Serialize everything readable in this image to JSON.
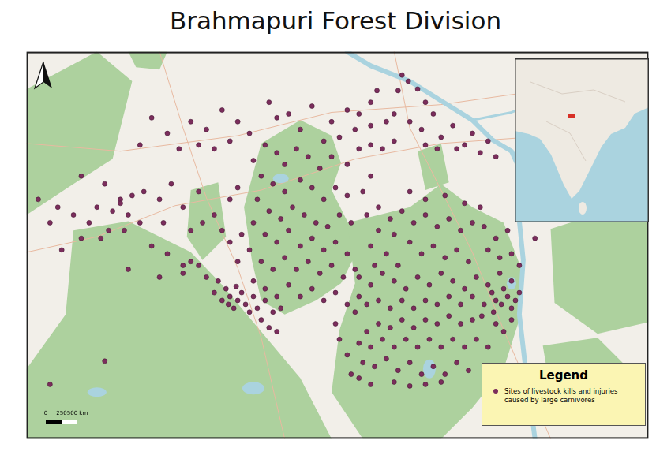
{
  "chart_data": {
    "type": "scatter",
    "title": "Brahmapuri Forest Division",
    "xlim": [
      30,
      825
    ],
    "ylim": [
      22,
      520
    ],
    "tick_labels": false,
    "grid": false,
    "legend": "bottom right",
    "legend_title": "Legend",
    "scale_bar": [
      {
        "value": 0,
        "label": "0"
      },
      {
        "value": 250,
        "label": "250"
      },
      {
        "value": 500,
        "label": "500 km"
      }
    ],
    "series": [
      {
        "name": "Sites of livestock kills and injuries caused by large carnivores",
        "color": "#7b2d5c",
        "marker": "circle",
        "points": [
          [
            510,
            490
          ],
          [
            518,
            482
          ],
          [
            505,
            470
          ],
          [
            530,
            472
          ],
          [
            540,
            455
          ],
          [
            478,
            470
          ],
          [
            470,
            455
          ],
          [
            455,
            440
          ],
          [
            440,
            445
          ],
          [
            420,
            430
          ],
          [
            395,
            450
          ],
          [
            380,
            420
          ],
          [
            410,
            405
          ],
          [
            430,
            410
          ],
          [
            450,
            420
          ],
          [
            470,
            425
          ],
          [
            490,
            430
          ],
          [
            500,
            440
          ],
          [
            520,
            430
          ],
          [
            535,
            420
          ],
          [
            550,
            440
          ],
          [
            560,
            410
          ],
          [
            575,
            425
          ],
          [
            590,
            400
          ],
          [
            600,
            415
          ],
          [
            620,
            405
          ],
          [
            630,
            385
          ],
          [
            610,
            390
          ],
          [
            580,
            395
          ],
          [
            555,
            395
          ],
          [
            540,
            400
          ],
          [
            500,
            405
          ],
          [
            485,
            395
          ],
          [
            470,
            400
          ],
          [
            455,
            395
          ],
          [
            340,
            455
          ],
          [
            350,
            435
          ],
          [
            365,
            440
          ],
          [
            300,
            430
          ],
          [
            280,
            445
          ],
          [
            260,
            420
          ],
          [
            240,
            430
          ],
          [
            210,
            415
          ],
          [
            190,
            435
          ],
          [
            175,
            400
          ],
          [
            225,
            395
          ],
          [
            250,
            400
          ],
          [
            270,
            395
          ],
          [
            290,
            405
          ],
          [
            315,
            415
          ],
          [
            100,
            360
          ],
          [
            130,
            350
          ],
          [
            150,
            330
          ],
          [
            120,
            320
          ],
          [
            140,
            315
          ],
          [
            160,
            310
          ],
          [
            110,
            300
          ],
          [
            90,
            310
          ],
          [
            70,
            320
          ],
          [
            45,
            330
          ],
          [
            60,
            300
          ],
          [
            180,
            340
          ],
          [
            200,
            330
          ],
          [
            215,
            350
          ],
          [
            230,
            320
          ],
          [
            250,
            340
          ],
          [
            205,
            300
          ],
          [
            175,
            300
          ],
          [
            155,
            290
          ],
          [
            135,
            290
          ],
          [
            125,
            280
          ],
          [
            150,
            325
          ],
          [
            165,
            335
          ],
          [
            255,
            300
          ],
          [
            240,
            290
          ],
          [
            270,
            310
          ],
          [
            290,
            330
          ],
          [
            300,
            345
          ],
          [
            280,
            290
          ],
          [
            190,
            270
          ],
          [
            210,
            260
          ],
          [
            230,
            245
          ],
          [
            200,
            230
          ],
          [
            160,
            240
          ],
          [
            100,
            280
          ],
          [
            75,
            265
          ],
          [
            320,
            380
          ],
          [
            335,
            400
          ],
          [
            350,
            390
          ],
          [
            360,
            375
          ],
          [
            375,
            395
          ],
          [
            390,
            385
          ],
          [
            405,
            370
          ],
          [
            420,
            385
          ],
          [
            440,
            375
          ],
          [
            330,
            360
          ],
          [
            345,
            350
          ],
          [
            360,
            340
          ],
          [
            380,
            355
          ],
          [
            395,
            345
          ],
          [
            410,
            330
          ],
          [
            425,
            345
          ],
          [
            440,
            335
          ],
          [
            325,
            330
          ],
          [
            340,
            315
          ],
          [
            355,
            305
          ],
          [
            370,
            320
          ],
          [
            385,
            310
          ],
          [
            400,
            300
          ],
          [
            415,
            295
          ],
          [
            430,
            310
          ],
          [
            445,
            300
          ],
          [
            320,
            300
          ],
          [
            335,
            285
          ],
          [
            350,
            275
          ],
          [
            365,
            290
          ],
          [
            380,
            270
          ],
          [
            395,
            280
          ],
          [
            410,
            265
          ],
          [
            425,
            275
          ],
          [
            440,
            260
          ],
          [
            315,
            265
          ],
          [
            330,
            250
          ],
          [
            345,
            240
          ],
          [
            360,
            255
          ],
          [
            375,
            240
          ],
          [
            390,
            250
          ],
          [
            405,
            235
          ],
          [
            420,
            245
          ],
          [
            435,
            230
          ],
          [
            450,
            240
          ],
          [
            320,
            225
          ],
          [
            335,
            215
          ],
          [
            350,
            205
          ],
          [
            365,
            220
          ],
          [
            380,
            205
          ],
          [
            395,
            215
          ],
          [
            410,
            200
          ],
          [
            425,
            210
          ],
          [
            440,
            195
          ],
          [
            455,
            205
          ],
          [
            300,
            250
          ],
          [
            290,
            275
          ],
          [
            305,
            285
          ],
          [
            470,
            270
          ],
          [
            480,
            290
          ],
          [
            465,
            310
          ],
          [
            460,
            340
          ],
          [
            470,
            360
          ],
          [
            275,
            225
          ],
          [
            285,
            215
          ],
          [
            290,
            205
          ],
          [
            300,
            200
          ],
          [
            295,
            190
          ],
          [
            305,
            210
          ],
          [
            310,
            195
          ],
          [
            320,
            205
          ],
          [
            315,
            185
          ],
          [
            280,
            200
          ],
          [
            325,
            190
          ],
          [
            335,
            200
          ],
          [
            288,
            195
          ],
          [
            298,
            218
          ],
          [
            270,
            210
          ],
          [
            260,
            230
          ],
          [
            250,
            245
          ],
          [
            240,
            250
          ],
          [
            230,
            235
          ],
          [
            345,
            185
          ],
          [
            355,
            190
          ],
          [
            330,
            175
          ],
          [
            340,
            165
          ],
          [
            350,
            160
          ],
          [
            480,
            320
          ],
          [
            495,
            305
          ],
          [
            510,
            315
          ],
          [
            525,
            300
          ],
          [
            540,
            310
          ],
          [
            555,
            295
          ],
          [
            570,
            305
          ],
          [
            585,
            290
          ],
          [
            600,
            300
          ],
          [
            615,
            295
          ],
          [
            630,
            280
          ],
          [
            645,
            290
          ],
          [
            500,
            285
          ],
          [
            520,
            275
          ],
          [
            535,
            260
          ],
          [
            550,
            270
          ],
          [
            565,
            255
          ],
          [
            580,
            265
          ],
          [
            595,
            250
          ],
          [
            490,
            260
          ],
          [
            475,
            245
          ],
          [
            505,
            245
          ],
          [
            620,
            265
          ],
          [
            635,
            255
          ],
          [
            650,
            260
          ],
          [
            660,
            245
          ],
          [
            540,
            330
          ],
          [
            565,
            335
          ],
          [
            590,
            325
          ],
          [
            520,
            340
          ],
          [
            610,
            320
          ],
          [
            680,
            280
          ],
          [
            455,
            230
          ],
          [
            470,
            220
          ],
          [
            485,
            235
          ],
          [
            500,
            225
          ],
          [
            515,
            215
          ],
          [
            530,
            230
          ],
          [
            545,
            220
          ],
          [
            560,
            235
          ],
          [
            575,
            225
          ],
          [
            590,
            215
          ],
          [
            605,
            230
          ],
          [
            620,
            220
          ],
          [
            635,
            235
          ],
          [
            650,
            225
          ],
          [
            660,
            210
          ],
          [
            645,
            205
          ],
          [
            630,
            200
          ],
          [
            615,
            195
          ],
          [
            600,
            205
          ],
          [
            585,
            195
          ],
          [
            570,
            205
          ],
          [
            555,
            195
          ],
          [
            540,
            200
          ],
          [
            525,
            190
          ],
          [
            510,
            200
          ],
          [
            495,
            190
          ],
          [
            480,
            200
          ],
          [
            465,
            195
          ],
          [
            450,
            185
          ],
          [
            640,
            215
          ],
          [
            655,
            200
          ],
          [
            625,
            210
          ],
          [
            650,
            190
          ],
          [
            637,
            195
          ],
          [
            612,
            180
          ],
          [
            627,
            185
          ],
          [
            600,
            175
          ],
          [
            585,
            170
          ],
          [
            570,
            180
          ],
          [
            555,
            170
          ],
          [
            540,
            175
          ],
          [
            525,
            165
          ],
          [
            510,
            175
          ],
          [
            495,
            165
          ],
          [
            480,
            170
          ],
          [
            465,
            160
          ],
          [
            455,
            145
          ],
          [
            470,
            140
          ],
          [
            485,
            150
          ],
          [
            500,
            140
          ],
          [
            515,
            150
          ],
          [
            530,
            140
          ],
          [
            545,
            150
          ],
          [
            560,
            140
          ],
          [
            575,
            150
          ],
          [
            590,
            140
          ],
          [
            605,
            150
          ],
          [
            620,
            140
          ],
          [
            640,
            160
          ],
          [
            630,
            170
          ],
          [
            650,
            175
          ],
          [
            460,
            120
          ],
          [
            475,
            115
          ],
          [
            490,
            125
          ],
          [
            505,
            110
          ],
          [
            520,
            120
          ],
          [
            535,
            105
          ],
          [
            550,
            115
          ],
          [
            565,
            105
          ],
          [
            580,
            120
          ],
          [
            595,
            110
          ],
          [
            440,
            130
          ],
          [
            445,
            105
          ],
          [
            430,
            150
          ],
          [
            425,
            170
          ],
          [
            500,
            95
          ],
          [
            520,
            90
          ],
          [
            540,
            92
          ],
          [
            560,
            95
          ],
          [
            470,
            92
          ],
          [
            455,
            100
          ],
          [
            60,
            92
          ],
          [
            130,
            122
          ]
        ]
      }
    ]
  }
}
